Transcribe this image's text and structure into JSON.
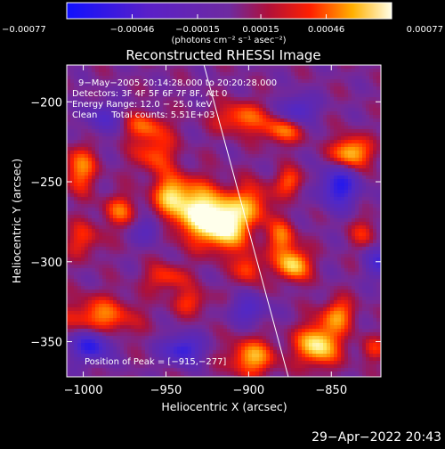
{
  "chart_data": {
    "type": "heatmap",
    "title": "Reconstructed RHESSI Image",
    "xlabel": "Heliocentric X (arcsec)",
    "ylabel": "Heliocentric Y (arcsec)",
    "xlim": [
      -1010,
      -820
    ],
    "ylim": [
      -372,
      -177
    ],
    "xticks": [
      {
        "value": -1000,
        "label": "−1000"
      },
      {
        "value": -950,
        "label": "−950"
      },
      {
        "value": -900,
        "label": "−900"
      },
      {
        "value": -850,
        "label": "−850"
      }
    ],
    "yticks": [
      {
        "value": -200,
        "label": "−200"
      },
      {
        "value": -250,
        "label": "−250"
      },
      {
        "value": -300,
        "label": "−300"
      },
      {
        "value": -350,
        "label": "−350"
      }
    ],
    "colorbar": {
      "range": [
        -0.00077,
        0.00077
      ],
      "ticks": [
        {
          "value": -0.00077,
          "label": "−0.00077"
        },
        {
          "value": -0.00046,
          "label": "−0.00046"
        },
        {
          "value": -0.00015,
          "label": "−0.00015"
        },
        {
          "value": 0.00015,
          "label": "0.00015"
        },
        {
          "value": 0.00046,
          "label": "0.00046"
        },
        {
          "value": 0.00077,
          "label": "0.00077"
        }
      ],
      "unit_label": "(photons cm⁻² s⁻¹ asec⁻²)"
    },
    "annotations": [
      "9−May−2005 20:14:28.000 to 20:20:28.000",
      "Detectors: 3F 4F 5F 6F 7F 8F, Att 0",
      "Energy Range: 12.0 − 25.0 keV",
      "Clean     Total counts: 5.51E+03"
    ],
    "peak_label": "Position of Peak = [−915,−277]",
    "peak": [
      -915,
      -277
    ],
    "limb_line": [
      [
        -927,
        -177
      ],
      [
        -876,
        -372
      ]
    ],
    "blobs": [
      {
        "x": -915,
        "y": -277,
        "sx": 11,
        "sy": 11,
        "a": 1.0
      },
      {
        "x": -933,
        "y": -267,
        "sx": 13,
        "sy": 12,
        "a": 0.8
      },
      {
        "x": -897,
        "y": -263,
        "sx": 8,
        "sy": 9,
        "a": 0.5
      },
      {
        "x": -947,
        "y": -257,
        "sx": 7,
        "sy": 8,
        "a": 0.55
      },
      {
        "x": -957,
        "y": -232,
        "sx": 9,
        "sy": 9,
        "a": 0.5
      },
      {
        "x": -963,
        "y": -215,
        "sx": 10,
        "sy": 6,
        "a": 0.45
      },
      {
        "x": -905,
        "y": -210,
        "sx": 11,
        "sy": 7,
        "a": 0.55
      },
      {
        "x": -880,
        "y": -218,
        "sx": 9,
        "sy": 6,
        "a": 0.55
      },
      {
        "x": -838,
        "y": -232,
        "sx": 8,
        "sy": 7,
        "a": 0.85
      },
      {
        "x": -875,
        "y": -250,
        "sx": 6,
        "sy": 6,
        "a": 0.5
      },
      {
        "x": -880,
        "y": -285,
        "sx": 6,
        "sy": 8,
        "a": 0.55
      },
      {
        "x": -873,
        "y": -302,
        "sx": 7,
        "sy": 7,
        "a": 0.85
      },
      {
        "x": -900,
        "y": -304,
        "sx": 6,
        "sy": 7,
        "a": 0.5
      },
      {
        "x": -858,
        "y": -352,
        "sx": 9,
        "sy": 9,
        "a": 0.95
      },
      {
        "x": -846,
        "y": -333,
        "sx": 7,
        "sy": 7,
        "a": 0.6
      },
      {
        "x": -898,
        "y": -360,
        "sx": 10,
        "sy": 8,
        "a": 0.7
      },
      {
        "x": -990,
        "y": -335,
        "sx": 15,
        "sy": 9,
        "a": 0.6
      },
      {
        "x": -1002,
        "y": -242,
        "sx": 7,
        "sy": 10,
        "a": 0.6
      },
      {
        "x": -978,
        "y": -268,
        "sx": 7,
        "sy": 7,
        "a": 0.5
      },
      {
        "x": -1000,
        "y": -286,
        "sx": 8,
        "sy": 8,
        "a": 0.4
      },
      {
        "x": -950,
        "y": -310,
        "sx": 9,
        "sy": 6,
        "a": 0.45
      },
      {
        "x": -935,
        "y": -325,
        "sx": 8,
        "sy": 6,
        "a": 0.4
      },
      {
        "x": -830,
        "y": -282,
        "sx": 6,
        "sy": 7,
        "a": 0.35
      },
      {
        "x": -825,
        "y": -355,
        "sx": 6,
        "sy": 6,
        "a": 0.35
      }
    ],
    "wells": [
      {
        "x": -995,
        "y": -352,
        "sx": 8,
        "sy": 7,
        "a": 0.9
      },
      {
        "x": -940,
        "y": -355,
        "sx": 8,
        "sy": 6,
        "a": 0.8
      },
      {
        "x": -845,
        "y": -253,
        "sx": 8,
        "sy": 9,
        "a": 0.85
      },
      {
        "x": -870,
        "y": -205,
        "sx": 7,
        "sy": 6,
        "a": 0.6
      },
      {
        "x": -988,
        "y": -210,
        "sx": 7,
        "sy": 7,
        "a": 0.5
      },
      {
        "x": -820,
        "y": -300,
        "sx": 6,
        "sy": 7,
        "a": 0.6
      },
      {
        "x": -960,
        "y": -280,
        "sx": 6,
        "sy": 6,
        "a": 0.45
      },
      {
        "x": -900,
        "y": -330,
        "sx": 8,
        "sy": 6,
        "a": 0.5
      }
    ]
  },
  "footer_timestamp": "29−Apr−2022 20:43"
}
